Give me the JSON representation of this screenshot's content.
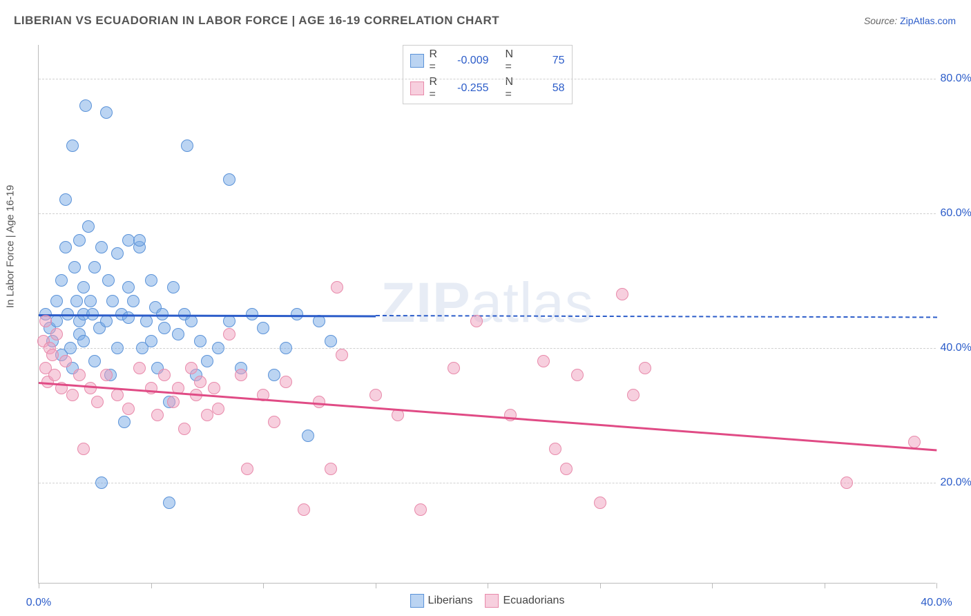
{
  "title": "LIBERIAN VS ECUADORIAN IN LABOR FORCE | AGE 16-19 CORRELATION CHART",
  "source_label": "Source: ",
  "source_link": "ZipAtlas.com",
  "watermark": "ZIPatlas",
  "y_axis_title": "In Labor Force | Age 16-19",
  "chart": {
    "type": "scatter",
    "background_color": "#ffffff",
    "grid_color": "#d0d0d0",
    "axis_color": "#bbbbbb",
    "xlim": [
      0,
      40
    ],
    "ylim": [
      5,
      85
    ],
    "x_tick_step": 5,
    "x_labels": [
      {
        "value": 0,
        "text": "0.0%"
      },
      {
        "value": 40,
        "text": "40.0%"
      }
    ],
    "y_gridlines": [
      20,
      40,
      60,
      80
    ],
    "y_labels": [
      "20.0%",
      "40.0%",
      "60.0%",
      "80.0%"
    ],
    "series": [
      {
        "name": "Liberians",
        "label": "Liberians",
        "color_fill": "rgba(120,170,230,0.5)",
        "color_stroke": "#5a92d8",
        "color_trend": "#2b5cc9",
        "R": "-0.009",
        "N": "75",
        "trend": {
          "x1": 0,
          "y1": 45,
          "x2": 40,
          "y2": 44.6,
          "solid_until_x": 15
        },
        "points": [
          [
            0.3,
            45
          ],
          [
            0.5,
            43
          ],
          [
            0.6,
            41
          ],
          [
            0.8,
            44
          ],
          [
            0.8,
            47
          ],
          [
            1.0,
            50
          ],
          [
            1.0,
            39
          ],
          [
            1.2,
            62
          ],
          [
            1.2,
            55
          ],
          [
            1.3,
            45
          ],
          [
            1.4,
            40
          ],
          [
            1.5,
            70
          ],
          [
            1.5,
            37
          ],
          [
            1.6,
            52
          ],
          [
            1.7,
            47
          ],
          [
            1.8,
            56
          ],
          [
            1.8,
            44
          ],
          [
            1.8,
            42
          ],
          [
            2.0,
            49
          ],
          [
            2.0,
            41
          ],
          [
            2.0,
            45
          ],
          [
            2.1,
            76
          ],
          [
            2.2,
            58
          ],
          [
            2.3,
            47
          ],
          [
            2.4,
            45
          ],
          [
            2.5,
            38
          ],
          [
            2.5,
            52
          ],
          [
            2.7,
            43
          ],
          [
            2.8,
            20
          ],
          [
            2.8,
            55
          ],
          [
            3.0,
            75
          ],
          [
            3.0,
            44
          ],
          [
            3.1,
            50
          ],
          [
            3.2,
            36
          ],
          [
            3.3,
            47
          ],
          [
            3.5,
            54
          ],
          [
            3.5,
            40
          ],
          [
            3.7,
            45
          ],
          [
            3.8,
            29
          ],
          [
            4.0,
            49
          ],
          [
            4.0,
            56
          ],
          [
            4.0,
            44.5
          ],
          [
            4.2,
            47
          ],
          [
            4.5,
            55
          ],
          [
            4.5,
            56
          ],
          [
            4.6,
            40
          ],
          [
            4.8,
            44
          ],
          [
            5.0,
            50
          ],
          [
            5.0,
            41
          ],
          [
            5.2,
            46
          ],
          [
            5.3,
            37
          ],
          [
            5.5,
            45
          ],
          [
            5.6,
            43
          ],
          [
            5.8,
            32
          ],
          [
            5.8,
            17
          ],
          [
            6.0,
            49
          ],
          [
            6.2,
            42
          ],
          [
            6.5,
            45
          ],
          [
            6.6,
            70
          ],
          [
            6.8,
            44
          ],
          [
            7.0,
            36
          ],
          [
            7.2,
            41
          ],
          [
            7.5,
            38
          ],
          [
            8.0,
            40
          ],
          [
            8.5,
            65
          ],
          [
            8.5,
            44
          ],
          [
            9.0,
            37
          ],
          [
            9.5,
            45
          ],
          [
            10.0,
            43
          ],
          [
            10.5,
            36
          ],
          [
            11.0,
            40
          ],
          [
            11.5,
            45
          ],
          [
            12.0,
            27
          ],
          [
            12.5,
            44
          ],
          [
            13.0,
            41
          ]
        ]
      },
      {
        "name": "Ecuadorians",
        "label": "Ecuadorians",
        "color_fill": "rgba(240,160,190,0.5)",
        "color_stroke": "#e889aa",
        "color_trend": "#e04b85",
        "R": "-0.255",
        "N": "58",
        "trend": {
          "x1": 0,
          "y1": 35,
          "x2": 40,
          "y2": 25,
          "solid_until_x": 40
        },
        "points": [
          [
            0.2,
            41
          ],
          [
            0.3,
            37
          ],
          [
            0.3,
            44
          ],
          [
            0.4,
            35
          ],
          [
            0.5,
            40
          ],
          [
            0.6,
            39
          ],
          [
            0.7,
            36
          ],
          [
            0.8,
            42
          ],
          [
            1.0,
            34
          ],
          [
            1.2,
            38
          ],
          [
            1.5,
            33
          ],
          [
            1.8,
            36
          ],
          [
            2.0,
            25
          ],
          [
            2.3,
            34
          ],
          [
            2.6,
            32
          ],
          [
            3.0,
            36
          ],
          [
            3.5,
            33
          ],
          [
            4.0,
            31
          ],
          [
            4.5,
            37
          ],
          [
            5.0,
            34
          ],
          [
            5.3,
            30
          ],
          [
            5.6,
            36
          ],
          [
            6.0,
            32
          ],
          [
            6.2,
            34
          ],
          [
            6.5,
            28
          ],
          [
            6.8,
            37
          ],
          [
            7.0,
            33
          ],
          [
            7.2,
            35
          ],
          [
            7.5,
            30
          ],
          [
            7.8,
            34
          ],
          [
            8.0,
            31
          ],
          [
            8.5,
            42
          ],
          [
            9.0,
            36
          ],
          [
            9.3,
            22
          ],
          [
            10.0,
            33
          ],
          [
            10.5,
            29
          ],
          [
            11.0,
            35
          ],
          [
            11.8,
            16
          ],
          [
            12.5,
            32
          ],
          [
            13.0,
            22
          ],
          [
            13.3,
            49
          ],
          [
            13.5,
            39
          ],
          [
            15.0,
            33
          ],
          [
            16.0,
            30
          ],
          [
            17.0,
            16
          ],
          [
            18.5,
            37
          ],
          [
            19.5,
            44
          ],
          [
            21.0,
            30
          ],
          [
            22.5,
            38
          ],
          [
            23.0,
            25
          ],
          [
            23.5,
            22
          ],
          [
            24.0,
            36
          ],
          [
            25.0,
            17
          ],
          [
            26.0,
            48
          ],
          [
            26.5,
            33
          ],
          [
            27.0,
            37
          ],
          [
            36.0,
            20
          ],
          [
            39.0,
            26
          ]
        ]
      }
    ]
  },
  "legend_top": {
    "R_label": "R = ",
    "N_label": "N = "
  }
}
